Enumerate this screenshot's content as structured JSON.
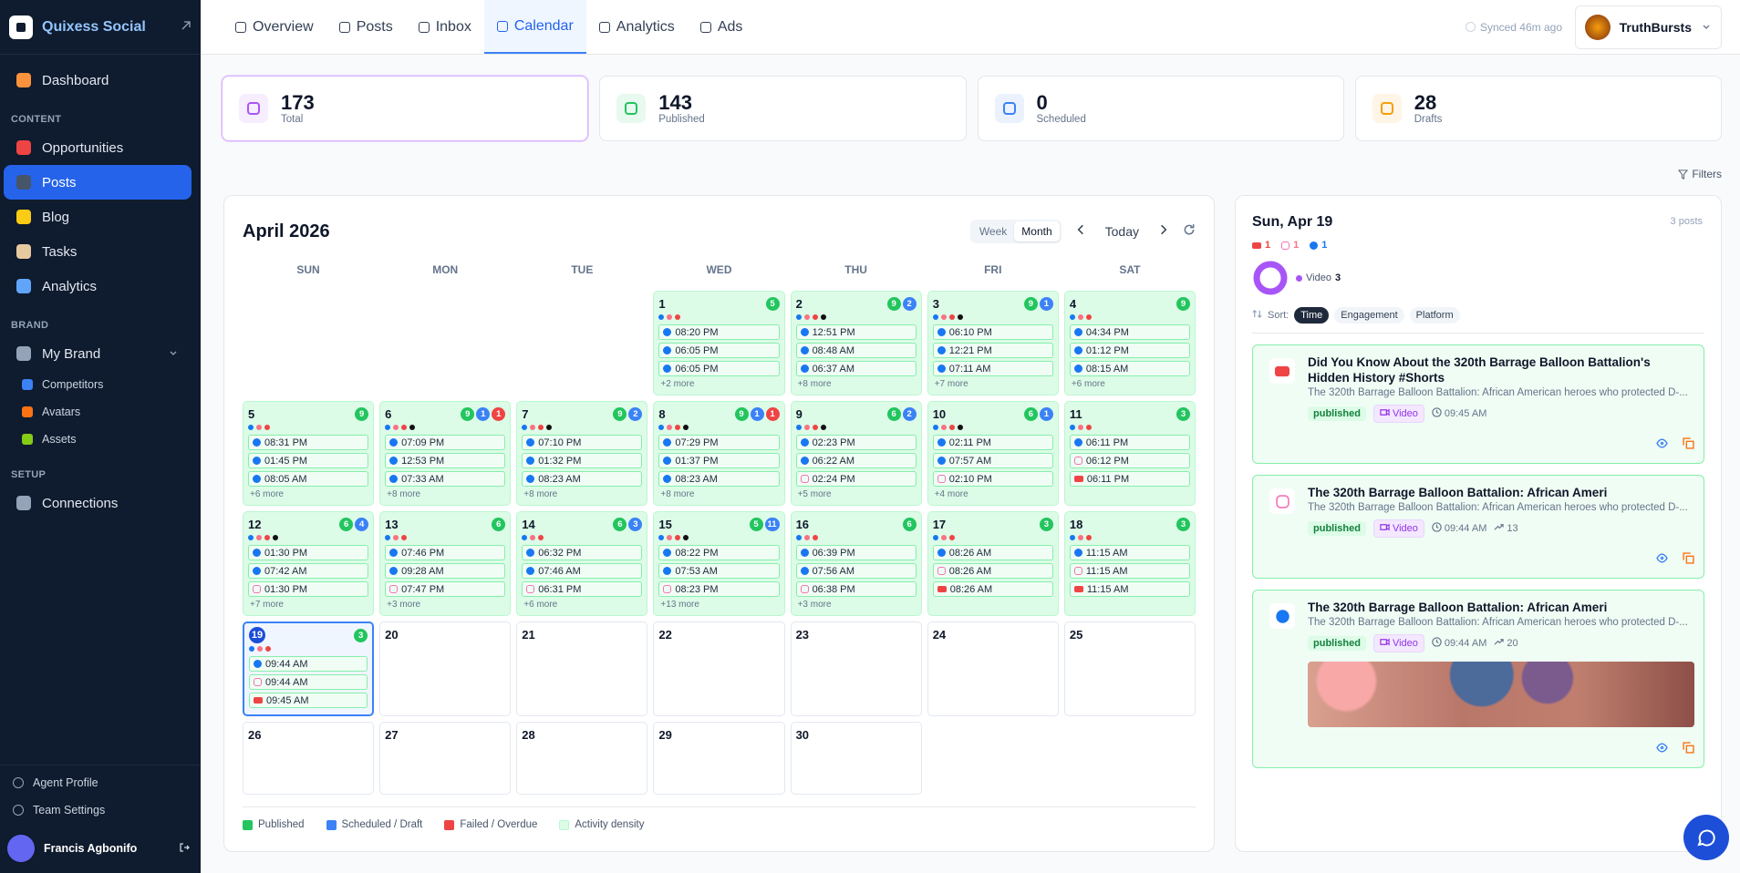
{
  "sidebar": {
    "brand": "Quixess Social",
    "sections": [
      {
        "items": [
          {
            "label": "Dashboard"
          }
        ]
      },
      {
        "heading": "CONTENT",
        "items": [
          {
            "label": "Opportunities"
          },
          {
            "label": "Posts",
            "active": true
          },
          {
            "label": "Blog"
          },
          {
            "label": "Tasks"
          },
          {
            "label": "Analytics"
          }
        ]
      },
      {
        "heading": "BRAND",
        "items": [
          {
            "label": "My Brand",
            "children": [
              {
                "label": "Competitors"
              },
              {
                "label": "Avatars"
              },
              {
                "label": "Assets"
              }
            ]
          }
        ]
      },
      {
        "heading": "SETUP",
        "items": [
          {
            "label": "Connections"
          }
        ]
      }
    ],
    "footer": [
      {
        "label": "Agent Profile"
      },
      {
        "label": "Team Settings"
      }
    ],
    "user": "Francis Agbonifo"
  },
  "topbar": {
    "tabs": [
      {
        "label": "Overview"
      },
      {
        "label": "Posts"
      },
      {
        "label": "Inbox"
      },
      {
        "label": "Calendar",
        "active": true
      },
      {
        "label": "Analytics"
      },
      {
        "label": "Ads"
      }
    ],
    "sync": "Synced 46m ago",
    "account": "TruthBursts"
  },
  "stats": [
    {
      "value": 173,
      "label": "Total",
      "color": "#a855f7",
      "active": true
    },
    {
      "value": 143,
      "label": "Published",
      "color": "#22c55e"
    },
    {
      "value": 0,
      "label": "Scheduled",
      "color": "#3b82f6"
    },
    {
      "value": 28,
      "label": "Drafts",
      "color": "#f59e0b"
    }
  ],
  "filters": "Filters",
  "calendar": {
    "title": "April 2026",
    "views": [
      {
        "label": "Week"
      },
      {
        "label": "Month",
        "active": true
      }
    ],
    "today": "Today",
    "weekdays": [
      "SUN",
      "MON",
      "TUE",
      "WED",
      "THU",
      "FRI",
      "SAT"
    ],
    "days": [
      null,
      null,
      null,
      {
        "day": 1,
        "badges": [
          {
            "count": 5,
            "color": "#22c55e"
          }
        ],
        "platforms": [
          "facebook",
          "instagram",
          "youtube"
        ],
        "posts": [
          {
            "platform": "facebook",
            "time": "08:20 PM"
          },
          {
            "platform": "facebook",
            "time": "06:05 PM"
          },
          {
            "platform": "facebook",
            "time": "06:05 PM"
          }
        ],
        "more": "+2 more"
      },
      {
        "day": 2,
        "badges": [
          {
            "count": 9,
            "color": "#22c55e"
          },
          {
            "count": 2,
            "color": "#3b82f6"
          }
        ],
        "platforms": [
          "facebook",
          "instagram",
          "youtube",
          "tiktok"
        ],
        "posts": [
          {
            "platform": "facebook",
            "time": "12:51 PM"
          },
          {
            "platform": "facebook",
            "time": "08:48 AM"
          },
          {
            "platform": "facebook",
            "time": "06:37 AM"
          }
        ],
        "more": "+8 more"
      },
      {
        "day": 3,
        "badges": [
          {
            "count": 9,
            "color": "#22c55e"
          },
          {
            "count": 1,
            "color": "#3b82f6"
          }
        ],
        "platforms": [
          "facebook",
          "instagram",
          "youtube",
          "tiktok"
        ],
        "posts": [
          {
            "platform": "facebook",
            "time": "06:10 PM"
          },
          {
            "platform": "facebook",
            "time": "12:21 PM"
          },
          {
            "platform": "facebook",
            "time": "07:11 AM"
          }
        ],
        "more": "+7 more"
      },
      {
        "day": 4,
        "badges": [
          {
            "count": 9,
            "color": "#22c55e"
          }
        ],
        "platforms": [
          "facebook",
          "instagram",
          "youtube"
        ],
        "posts": [
          {
            "platform": "facebook",
            "time": "04:34 PM"
          },
          {
            "platform": "facebook",
            "time": "01:12 PM"
          },
          {
            "platform": "facebook",
            "time": "08:15 AM"
          }
        ],
        "more": "+6 more"
      },
      {
        "day": 5,
        "badges": [
          {
            "count": 9,
            "color": "#22c55e"
          }
        ],
        "platforms": [
          "facebook",
          "instagram",
          "youtube"
        ],
        "posts": [
          {
            "platform": "facebook",
            "time": "08:31 PM"
          },
          {
            "platform": "facebook",
            "time": "01:45 PM"
          },
          {
            "platform": "facebook",
            "time": "08:05 AM"
          }
        ],
        "more": "+6 more"
      },
      {
        "day": 6,
        "badges": [
          {
            "count": 9,
            "color": "#22c55e"
          },
          {
            "count": 1,
            "color": "#3b82f6"
          },
          {
            "count": 1,
            "color": "#ef4444"
          }
        ],
        "platforms": [
          "facebook",
          "instagram",
          "youtube",
          "tiktok"
        ],
        "posts": [
          {
            "platform": "facebook",
            "time": "07:09 PM"
          },
          {
            "platform": "facebook",
            "time": "12:53 PM"
          },
          {
            "platform": "facebook",
            "time": "07:33 AM"
          }
        ],
        "more": "+8 more"
      },
      {
        "day": 7,
        "badges": [
          {
            "count": 9,
            "color": "#22c55e"
          },
          {
            "count": 2,
            "color": "#3b82f6"
          }
        ],
        "platforms": [
          "facebook",
          "instagram",
          "youtube",
          "tiktok"
        ],
        "posts": [
          {
            "platform": "facebook",
            "time": "07:10 PM"
          },
          {
            "platform": "facebook",
            "time": "01:32 PM"
          },
          {
            "platform": "facebook",
            "time": "08:23 AM"
          }
        ],
        "more": "+8 more"
      },
      {
        "day": 8,
        "badges": [
          {
            "count": 9,
            "color": "#22c55e"
          },
          {
            "count": 1,
            "color": "#3b82f6"
          },
          {
            "count": 1,
            "color": "#ef4444"
          }
        ],
        "platforms": [
          "facebook",
          "instagram",
          "youtube",
          "tiktok"
        ],
        "posts": [
          {
            "platform": "facebook",
            "time": "07:29 PM"
          },
          {
            "platform": "facebook",
            "time": "01:37 PM"
          },
          {
            "platform": "facebook",
            "time": "08:23 AM"
          }
        ],
        "more": "+8 more"
      },
      {
        "day": 9,
        "badges": [
          {
            "count": 6,
            "color": "#22c55e"
          },
          {
            "count": 2,
            "color": "#3b82f6"
          }
        ],
        "platforms": [
          "facebook",
          "instagram",
          "youtube",
          "tiktok"
        ],
        "posts": [
          {
            "platform": "facebook",
            "time": "02:23 PM"
          },
          {
            "platform": "facebook",
            "time": "06:22 AM"
          },
          {
            "platform": "instagram",
            "time": "02:24 PM"
          }
        ],
        "more": "+5 more"
      },
      {
        "day": 10,
        "badges": [
          {
            "count": 6,
            "color": "#22c55e"
          },
          {
            "count": 1,
            "color": "#3b82f6"
          }
        ],
        "platforms": [
          "facebook",
          "instagram",
          "youtube",
          "tiktok"
        ],
        "posts": [
          {
            "platform": "facebook",
            "time": "02:11 PM"
          },
          {
            "platform": "facebook",
            "time": "07:57 AM"
          },
          {
            "platform": "instagram",
            "time": "02:10 PM"
          }
        ],
        "more": "+4 more"
      },
      {
        "day": 11,
        "badges": [
          {
            "count": 3,
            "color": "#22c55e"
          }
        ],
        "platforms": [
          "facebook",
          "instagram",
          "youtube"
        ],
        "posts": [
          {
            "platform": "facebook",
            "time": "06:11 PM"
          },
          {
            "platform": "instagram",
            "time": "06:12 PM"
          },
          {
            "platform": "youtube",
            "time": "06:11 PM"
          }
        ]
      },
      {
        "day": 12,
        "badges": [
          {
            "count": 6,
            "color": "#22c55e"
          },
          {
            "count": 4,
            "color": "#3b82f6"
          }
        ],
        "platforms": [
          "facebook",
          "instagram",
          "youtube",
          "tiktok"
        ],
        "posts": [
          {
            "platform": "facebook",
            "time": "01:30 PM"
          },
          {
            "platform": "facebook",
            "time": "07:42 AM"
          },
          {
            "platform": "instagram",
            "time": "01:30 PM"
          }
        ],
        "more": "+7 more"
      },
      {
        "day": 13,
        "badges": [
          {
            "count": 6,
            "color": "#22c55e"
          }
        ],
        "platforms": [
          "facebook",
          "instagram",
          "youtube"
        ],
        "posts": [
          {
            "platform": "facebook",
            "time": "07:46 PM"
          },
          {
            "platform": "facebook",
            "time": "09:28 AM"
          },
          {
            "platform": "instagram",
            "time": "07:47 PM"
          }
        ],
        "more": "+3 more"
      },
      {
        "day": 14,
        "badges": [
          {
            "count": 6,
            "color": "#22c55e"
          },
          {
            "count": 3,
            "color": "#3b82f6"
          }
        ],
        "platforms": [
          "facebook",
          "instagram",
          "youtube"
        ],
        "posts": [
          {
            "platform": "facebook",
            "time": "06:32 PM"
          },
          {
            "platform": "facebook",
            "time": "07:46 AM"
          },
          {
            "platform": "instagram",
            "time": "06:31 PM"
          }
        ],
        "more": "+6 more"
      },
      {
        "day": 15,
        "badges": [
          {
            "count": 5,
            "color": "#22c55e"
          },
          {
            "count": 11,
            "color": "#3b82f6"
          }
        ],
        "platforms": [
          "facebook",
          "instagram",
          "youtube",
          "tiktok"
        ],
        "posts": [
          {
            "platform": "facebook",
            "time": "08:22 PM"
          },
          {
            "platform": "facebook",
            "time": "07:53 AM"
          },
          {
            "platform": "instagram",
            "time": "08:23 PM"
          }
        ],
        "more": "+13 more"
      },
      {
        "day": 16,
        "badges": [
          {
            "count": 6,
            "color": "#22c55e"
          }
        ],
        "platforms": [
          "facebook",
          "instagram",
          "youtube"
        ],
        "posts": [
          {
            "platform": "facebook",
            "time": "06:39 PM"
          },
          {
            "platform": "facebook",
            "time": "07:56 AM"
          },
          {
            "platform": "instagram",
            "time": "06:38 PM"
          }
        ],
        "more": "+3 more"
      },
      {
        "day": 17,
        "badges": [
          {
            "count": 3,
            "color": "#22c55e"
          }
        ],
        "platforms": [
          "facebook",
          "instagram",
          "youtube"
        ],
        "posts": [
          {
            "platform": "facebook",
            "time": "08:26 AM"
          },
          {
            "platform": "instagram",
            "time": "08:26 AM"
          },
          {
            "platform": "youtube",
            "time": "08:26 AM"
          }
        ]
      },
      {
        "day": 18,
        "badges": [
          {
            "count": 3,
            "color": "#22c55e"
          }
        ],
        "platforms": [
          "facebook",
          "instagram",
          "youtube"
        ],
        "posts": [
          {
            "platform": "facebook",
            "time": "11:15 AM"
          },
          {
            "platform": "instagram",
            "time": "11:15 AM"
          },
          {
            "platform": "youtube",
            "time": "11:15 AM"
          }
        ]
      },
      {
        "day": 19,
        "selected": true,
        "badges": [
          {
            "count": 3,
            "color": "#22c55e"
          }
        ],
        "platforms": [
          "facebook",
          "instagram",
          "youtube"
        ],
        "posts": [
          {
            "platform": "facebook",
            "time": "09:44 AM"
          },
          {
            "platform": "instagram",
            "time": "09:44 AM"
          },
          {
            "platform": "youtube",
            "time": "09:45 AM"
          }
        ]
      },
      {
        "day": 20
      },
      {
        "day": 21
      },
      {
        "day": 22
      },
      {
        "day": 23
      },
      {
        "day": 24
      },
      {
        "day": 25
      },
      {
        "day": 26
      },
      {
        "day": 27
      },
      {
        "day": 28
      },
      {
        "day": 29
      },
      {
        "day": 30
      }
    ],
    "legend": [
      {
        "label": "Published",
        "color": "#22c55e"
      },
      {
        "label": "Scheduled / Draft",
        "color": "#3b82f6"
      },
      {
        "label": "Failed / Overdue",
        "color": "#ef4444"
      },
      {
        "label": "Activity density",
        "color": "#dcfce7"
      }
    ]
  },
  "panel": {
    "date": "Sun, Apr 19",
    "count": "3 posts",
    "platform_counts": [
      {
        "platform": "youtube",
        "count": 1
      },
      {
        "platform": "instagram",
        "count": 1
      },
      {
        "platform": "facebook",
        "count": 1
      }
    ],
    "breakdown": {
      "label": "Video",
      "count": 3
    },
    "sort_label": "Sort:",
    "sort_options": [
      {
        "label": "Time",
        "active": true
      },
      {
        "label": "Engagement"
      },
      {
        "label": "Platform"
      }
    ],
    "posts": [
      {
        "platform": "youtube",
        "title": "Did You Know About the 320th Barrage Balloon Battalion's Hidden History #Shorts",
        "description": "The 320th Barrage Balloon Battalion: African American heroes who protected D-...",
        "status": "published",
        "type": "Video",
        "time": "09:45 AM"
      },
      {
        "platform": "instagram",
        "title": "The 320th Barrage Balloon Battalion: African Ameri",
        "description": "The 320th Barrage Balloon Battalion: African American heroes who protected D-...",
        "status": "published",
        "type": "Video",
        "time": "09:44 AM",
        "engagement": 13
      },
      {
        "platform": "facebook",
        "title": "The 320th Barrage Balloon Battalion: African Ameri",
        "description": "The 320th Barrage Balloon Battalion: African American heroes who protected D-...",
        "status": "published",
        "type": "Video",
        "time": "09:44 AM",
        "engagement": 20,
        "image": true
      }
    ]
  }
}
